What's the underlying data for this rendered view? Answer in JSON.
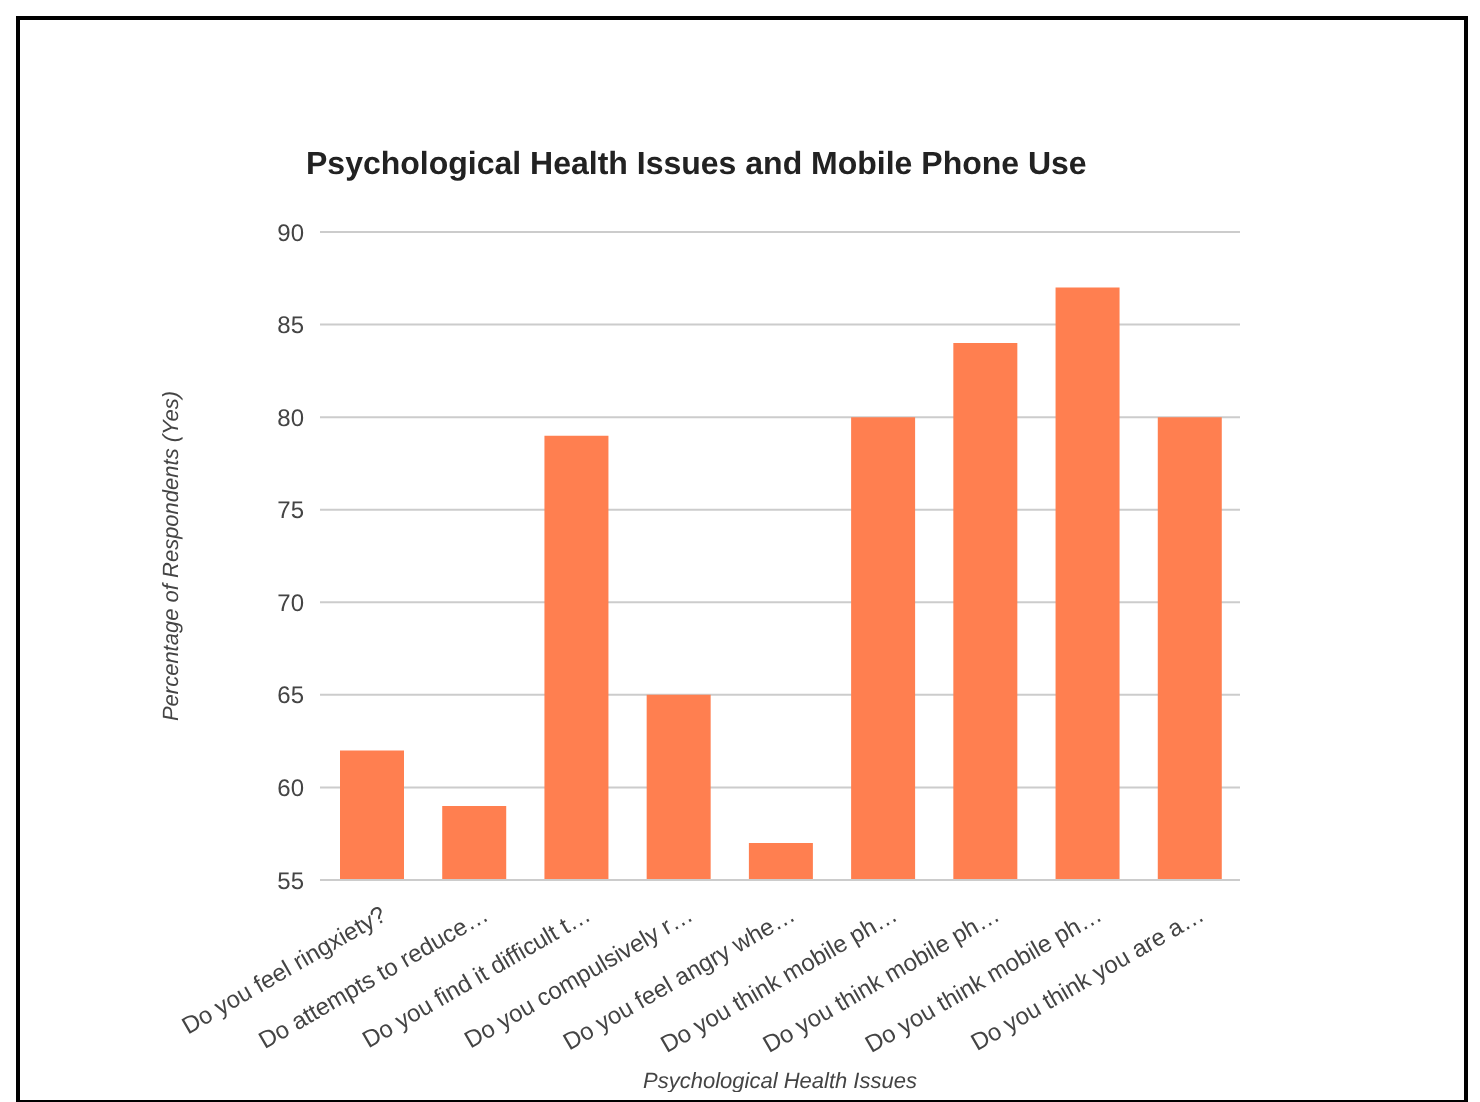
{
  "chart_data": {
    "type": "bar",
    "title": "Psychological Health Issues and Mobile Phone Use",
    "xlabel": "Psychological Health Issues",
    "ylabel": "Percentage of Respondents (Yes)",
    "categories": [
      "Do you feel ringxiety?",
      "Do attempts to reduce…",
      "Do you find it difficult t…",
      "Do you compulsively r…",
      "Do you feel angry whe…",
      "Do you think mobile ph…",
      "Do you think mobile ph…",
      "Do you think mobile ph…",
      "Do you think you are a…"
    ],
    "values": [
      62,
      59,
      79,
      65,
      57,
      80,
      84,
      87,
      80
    ],
    "color": "#ff7f50",
    "ylim": [
      55,
      90
    ],
    "yticks": [
      55,
      60,
      65,
      70,
      75,
      80,
      85,
      90
    ],
    "grid": true
  }
}
